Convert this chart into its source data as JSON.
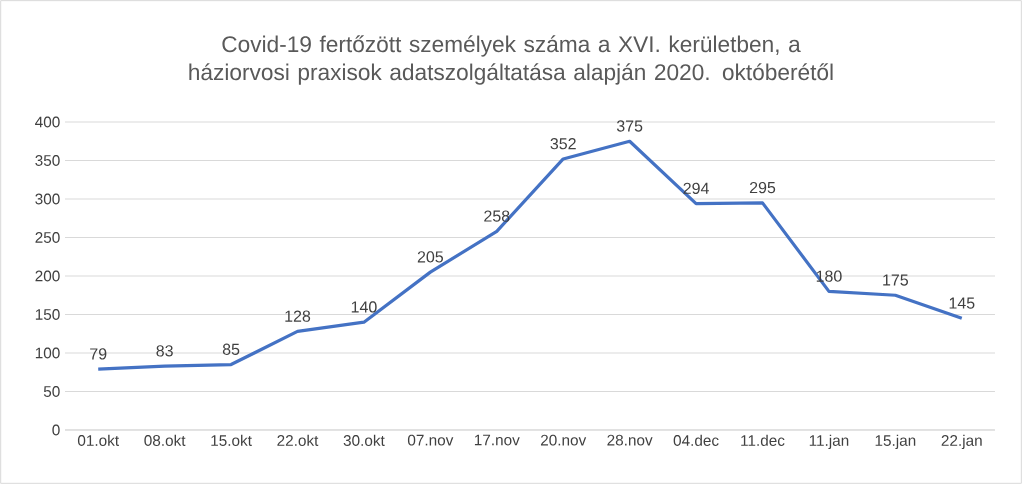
{
  "chart_data": {
    "type": "line",
    "title": "Covid-19 fertőzött személyek száma a XVI. kerületben, a háziorvosi praxisok adatszolgáltatása alapján 2020. októberétől",
    "categories": [
      "01.okt",
      "08.okt",
      "15.okt",
      "22.okt",
      "30.okt",
      "07.nov",
      "17.nov",
      "20.nov",
      "28.nov",
      "04.dec",
      "11.dec",
      "11.jan",
      "15.jan",
      "22.jan"
    ],
    "series": [
      {
        "color": "#4472c4",
        "values": [
          79,
          83,
          85,
          128,
          140,
          205,
          258,
          352,
          375,
          294,
          295,
          180,
          175,
          145
        ]
      }
    ],
    "ylim": [
      0,
      400
    ],
    "yticks": [
      0,
      50,
      100,
      150,
      200,
      250,
      300,
      350,
      400
    ],
    "grid": "y",
    "data_labels": true,
    "marker": "none",
    "line_style": "solid"
  }
}
